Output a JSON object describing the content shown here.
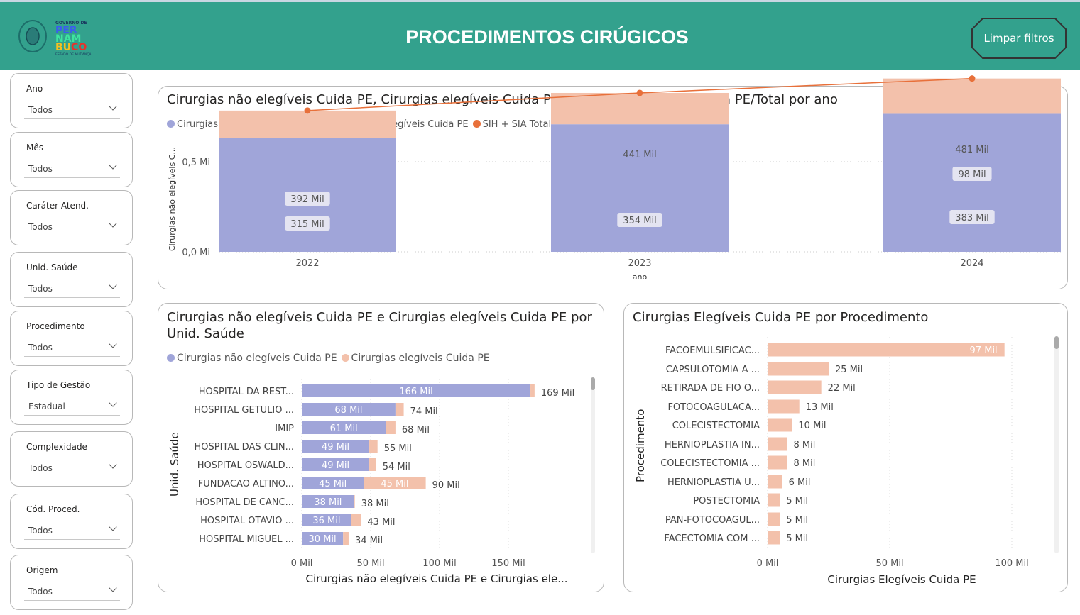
{
  "header": {
    "title": "PROCEDIMENTOS CIRÚGICOS",
    "logo_text": "GOVERNO DE PERNAMBUCO ESTADO DE MUDANÇA",
    "clear_label": "Limpar filtros",
    "color": "#33a18d"
  },
  "slicers": [
    {
      "label": "Ano",
      "value": "Todos"
    },
    {
      "label": "Mês",
      "value": "Todos"
    },
    {
      "label": "Caráter Atend.",
      "value": "Todos"
    },
    {
      "label": "Unid. Saúde",
      "value": "Todos"
    },
    {
      "label": "Procedimento",
      "value": "Todos"
    },
    {
      "label": "Tipo de Gestão",
      "value": "Estadual"
    },
    {
      "label": "Complexidade",
      "value": "Todos"
    },
    {
      "label": "Cód. Proced.",
      "value": "Todos"
    },
    {
      "label": "Origem",
      "value": "Todos"
    }
  ],
  "colors": {
    "nao_elegiveis": "#a0a5d9",
    "elegiveis": "#f3c1ab",
    "total": "#e8703a"
  },
  "chart_data": [
    {
      "type": "bar",
      "title": "Cirurgias não elegíveis Cuida PE, Cirurgias elegíveis Cuida PE, SIH + SIA Total e % Cuida PE/Total por ano",
      "legend": [
        "Cirurgias não elegíveis Cuida PE",
        "Cirurgias elegíveis Cuida PE",
        "SIH + SIA Total"
      ],
      "xlabel": "ano",
      "ylabel": "Cirurgias não elegíveis C...",
      "categories": [
        "2022",
        "2023",
        "2024"
      ],
      "yticks": [
        "0,0 Mi",
        "0,5 Mi"
      ],
      "ylim": [
        0,
        500
      ],
      "unit": "Mil",
      "series": [
        {
          "name": "Cirurgias não elegíveis Cuida PE",
          "values": [
            315,
            354,
            383
          ],
          "labels": [
            "315 Mil",
            "354 Mil",
            "383 Mil"
          ]
        },
        {
          "name": "Cirurgias elegíveis Cuida PE",
          "values": [
            77,
            87,
            98
          ],
          "labels": [
            "",
            "",
            "98 Mil"
          ]
        },
        {
          "name": "SIH + SIA Total",
          "values": [
            392,
            441,
            481
          ],
          "labels": [
            "392 Mil",
            "441 Mil",
            "481 Mil"
          ]
        }
      ]
    },
    {
      "type": "bar",
      "title": "Cirurgias não elegíveis Cuida PE e Cirurgias elegíveis Cuida PE por Unid. Saúde",
      "legend": [
        "Cirurgias não elegíveis Cuida PE",
        "Cirurgias elegíveis Cuida PE"
      ],
      "ylabel": "Unid. Saúde",
      "xlabel": "Cirurgias não elegíveis Cuida PE e Cirurgias ele...",
      "xticks": [
        "0 Mil",
        "50 Mil",
        "100 Mil",
        "150 Mil"
      ],
      "xlim": [
        0,
        200
      ],
      "categories": [
        "HOSPITAL DA REST...",
        "HOSPITAL GETULIO ...",
        "IMIP",
        "HOSPITAL DAS CLIN...",
        "HOSPITAL OSWALD...",
        "FUNDACAO ALTINO...",
        "HOSPITAL DE CANC...",
        "HOSPITAL OTAVIO ...",
        "HOSPITAL MIGUEL ..."
      ],
      "series": [
        {
          "name": "Cirurgias não elegíveis Cuida PE",
          "values": [
            166,
            68,
            61,
            49,
            49,
            45,
            38,
            36,
            30
          ],
          "labels": [
            "166 Mil",
            "68 Mil",
            "61 Mil",
            "49 Mil",
            "49 Mil",
            "45 Mil",
            "38 Mil",
            "36 Mil",
            "30 Mil"
          ]
        },
        {
          "name": "Cirurgias elegíveis Cuida PE",
          "values": [
            3,
            6,
            7,
            6,
            5,
            45,
            0.5,
            7,
            4
          ],
          "labels": [
            "",
            "",
            "",
            "",
            "",
            "45 Mil",
            "",
            "",
            ""
          ]
        }
      ],
      "totals": [
        "169 Mil",
        "74 Mil",
        "68 Mil",
        "55 Mil",
        "54 Mil",
        "90 Mil",
        "38 Mil",
        "43 Mil",
        "34 Mil"
      ]
    },
    {
      "type": "bar",
      "title": "Cirurgias Elegíveis Cuida PE por Procedimento",
      "ylabel": "Procedimento",
      "xlabel": "Cirurgias Elegíveis Cuida PE",
      "xticks": [
        "0 Mil",
        "50 Mil",
        "100 Mil"
      ],
      "xlim": [
        0,
        110
      ],
      "categories": [
        "FACOEMULSIFICAC...",
        "CAPSULOTOMIA A ...",
        "RETIRADA DE FIO O...",
        "FOTOCOAGULACA...",
        "COLECISTECTOMIA",
        "HERNIOPLASTIA IN...",
        "COLECISTECTOMIA ...",
        "HERNIOPLASTIA U...",
        "POSTECTOMIA",
        "PAN-FOTOCOAGUL...",
        "FACECTOMIA COM ..."
      ],
      "values": [
        97,
        25,
        22,
        13,
        10,
        8,
        8,
        6,
        5,
        5,
        5
      ],
      "labels": [
        "97 Mil",
        "25 Mil",
        "22 Mil",
        "13 Mil",
        "10 Mil",
        "8 Mil",
        "8 Mil",
        "6 Mil",
        "5 Mil",
        "5 Mil",
        "5 Mil"
      ]
    }
  ]
}
